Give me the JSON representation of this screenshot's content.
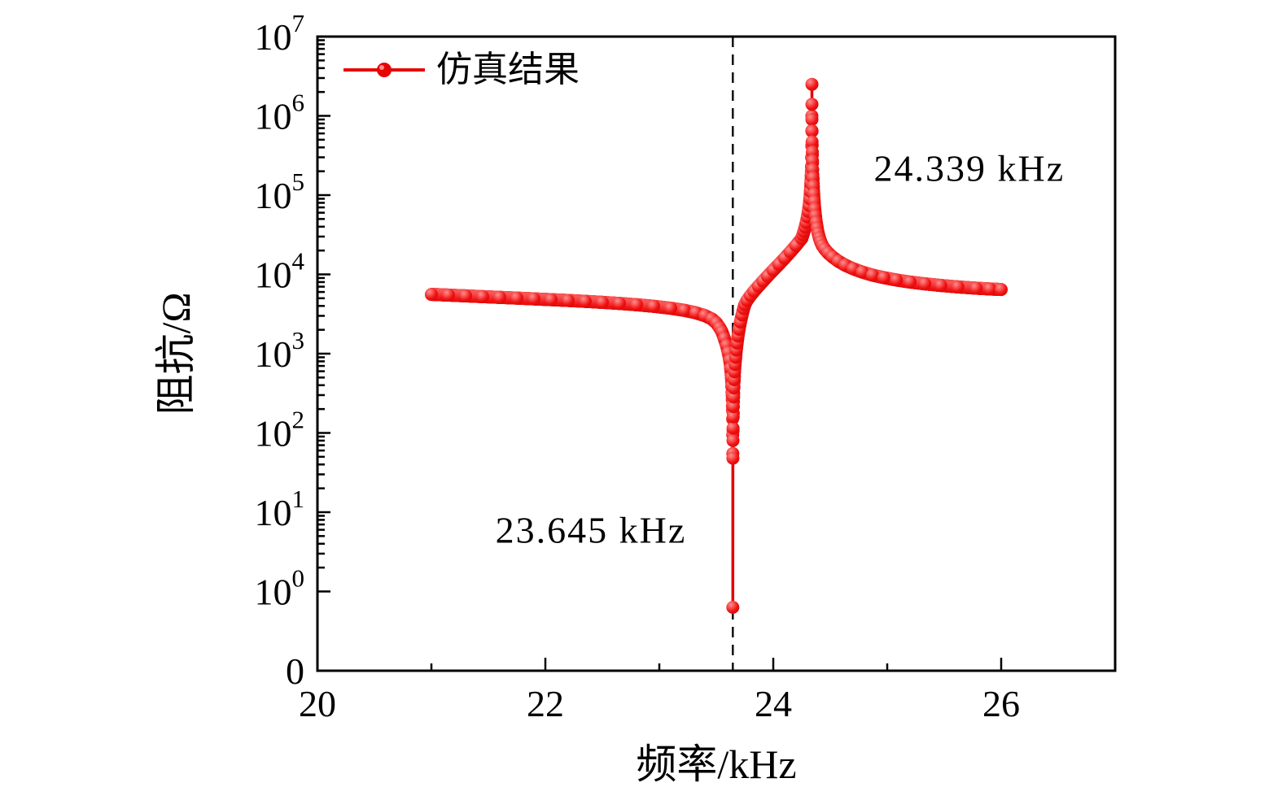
{
  "chart_data": {
    "type": "line",
    "xlabel": "频率/kHz",
    "ylabel": "阻抗/Ω",
    "xlim": [
      20,
      27
    ],
    "x_major_ticks": [
      20,
      22,
      24,
      26
    ],
    "x_minor_ticks": [
      21,
      23,
      25
    ],
    "y_axis": {
      "scale": "log",
      "base_label": "10",
      "exponent_ticks": [
        0,
        1,
        2,
        3,
        4,
        5,
        6,
        7
      ],
      "bottom_label": "0"
    },
    "legend": {
      "label": "仿真结果"
    },
    "dashed_line_f": 23.645,
    "resonance_annotation": {
      "text": "23.645 kHz",
      "f": 22.4,
      "v": 6
    },
    "antiresonance_annotation": {
      "text": "24.339 kHz",
      "f": 25.72,
      "v": 220000
    },
    "series": [
      {
        "name": "仿真结果",
        "color": "#e60505",
        "marker": "circle",
        "points": [
          [
            21.0,
            5600
          ],
          [
            21.15,
            5480
          ],
          [
            21.3,
            5360
          ],
          [
            21.45,
            5240
          ],
          [
            21.6,
            5130
          ],
          [
            21.75,
            5020
          ],
          [
            21.9,
            4910
          ],
          [
            22.05,
            4800
          ],
          [
            22.2,
            4690
          ],
          [
            22.35,
            4570
          ],
          [
            22.5,
            4440
          ],
          [
            22.65,
            4300
          ],
          [
            22.8,
            4140
          ],
          [
            22.95,
            3960
          ],
          [
            23.1,
            3740
          ],
          [
            23.22,
            3520
          ],
          [
            23.32,
            3280
          ],
          [
            23.4,
            3020
          ],
          [
            23.46,
            2740
          ],
          [
            23.5,
            2440
          ],
          [
            23.53,
            2120
          ],
          [
            23.55,
            1880
          ],
          [
            23.57,
            1560
          ],
          [
            23.59,
            1270
          ],
          [
            23.605,
            1030
          ],
          [
            23.617,
            830
          ],
          [
            23.626,
            650
          ],
          [
            23.632,
            500
          ],
          [
            23.636,
            390
          ],
          [
            23.639,
            300
          ],
          [
            23.6415,
            220
          ],
          [
            23.643,
            150
          ],
          [
            23.644,
            95
          ],
          [
            23.6447,
            55
          ],
          [
            23.645,
            0.8
          ],
          [
            23.6455,
            48
          ],
          [
            23.6462,
            80
          ],
          [
            23.6472,
            115
          ],
          [
            23.6485,
            160
          ],
          [
            23.65,
            215
          ],
          [
            23.652,
            285
          ],
          [
            23.6545,
            370
          ],
          [
            23.6575,
            470
          ],
          [
            23.661,
            590
          ],
          [
            23.665,
            730
          ],
          [
            23.67,
            900
          ],
          [
            23.676,
            1110
          ],
          [
            23.683,
            1360
          ],
          [
            23.691,
            1670
          ],
          [
            23.7,
            2030
          ],
          [
            23.712,
            2500
          ],
          [
            23.726,
            3080
          ],
          [
            23.74,
            3700
          ],
          [
            23.75,
            4150
          ],
          [
            23.77,
            4700
          ],
          [
            23.8,
            5400
          ],
          [
            23.83,
            6100
          ],
          [
            23.87,
            7100
          ],
          [
            23.91,
            8200
          ],
          [
            23.95,
            9500
          ],
          [
            24.0,
            11300
          ],
          [
            24.05,
            13400
          ],
          [
            24.1,
            16000
          ],
          [
            24.15,
            19200
          ],
          [
            24.2,
            23200
          ],
          [
            24.25,
            28500
          ],
          [
            24.26,
            31500
          ],
          [
            24.27,
            35000
          ],
          [
            24.28,
            39500
          ],
          [
            24.29,
            45000
          ],
          [
            24.3,
            53000
          ],
          [
            24.308,
            62000
          ],
          [
            24.315,
            74000
          ],
          [
            24.321,
            90000
          ],
          [
            24.326,
            112000
          ],
          [
            24.33,
            142000
          ],
          [
            24.333,
            180000
          ],
          [
            24.3355,
            230000
          ],
          [
            24.337,
            300000
          ],
          [
            24.338,
            420000
          ],
          [
            24.3385,
            650000
          ],
          [
            24.3388,
            1000000
          ],
          [
            24.339,
            2500000
          ],
          [
            24.3393,
            1400000
          ],
          [
            24.3396,
            900000
          ],
          [
            24.34,
            640000
          ],
          [
            24.341,
            470000
          ],
          [
            24.3425,
            350000
          ],
          [
            24.344,
            270000
          ],
          [
            24.346,
            210000
          ],
          [
            24.3485,
            165000
          ],
          [
            24.3515,
            130000
          ],
          [
            24.355,
            103000
          ],
          [
            24.359,
            83000
          ],
          [
            24.364,
            67000
          ],
          [
            24.37,
            55000
          ],
          [
            24.377,
            45500
          ],
          [
            24.385,
            38500
          ],
          [
            24.394,
            33000
          ],
          [
            24.404,
            29000
          ],
          [
            24.416,
            25800
          ],
          [
            24.43,
            23200
          ],
          [
            24.45,
            21000
          ],
          [
            24.48,
            18700
          ],
          [
            24.52,
            16600
          ],
          [
            24.57,
            14700
          ],
          [
            24.63,
            13100
          ],
          [
            24.7,
            11800
          ],
          [
            24.78,
            10700
          ],
          [
            24.87,
            9800
          ],
          [
            24.97,
            9100
          ],
          [
            25.08,
            8500
          ],
          [
            25.2,
            8000
          ],
          [
            25.33,
            7600
          ],
          [
            25.47,
            7250
          ],
          [
            25.62,
            6950
          ],
          [
            25.78,
            6700
          ],
          [
            25.9,
            6550
          ],
          [
            26.0,
            6450
          ]
        ]
      }
    ]
  }
}
